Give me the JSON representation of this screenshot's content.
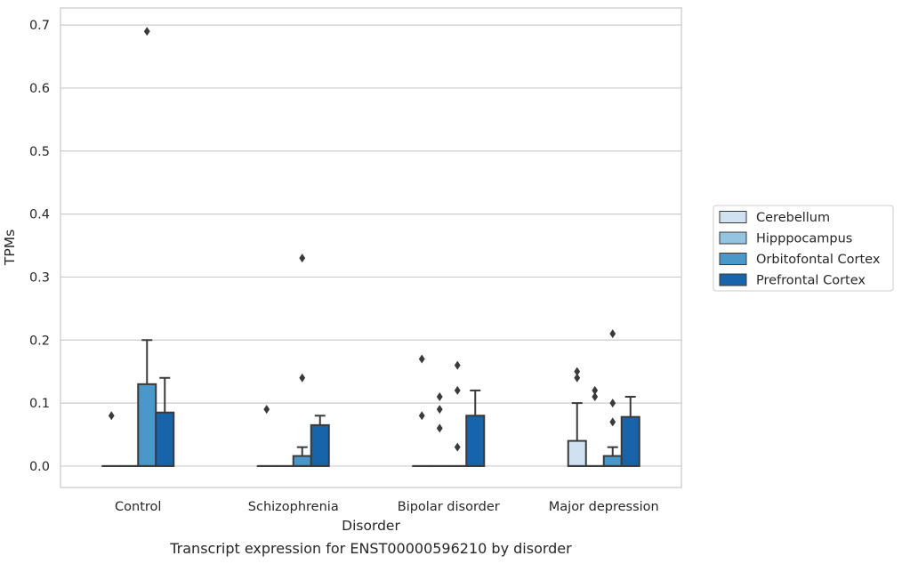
{
  "chart_data": {
    "type": "box",
    "title": "",
    "caption": "Transcript expression for ENST00000596210 by disorder",
    "xlabel": "Disorder",
    "ylabel": "TPMs",
    "ylim": [
      -0.034,
      0.727
    ],
    "yticks": [
      0.0,
      0.1,
      0.2,
      0.3,
      0.4,
      0.5,
      0.6,
      0.7
    ],
    "ytick_labels": [
      "0.0",
      "0.1",
      "0.2",
      "0.3",
      "0.4",
      "0.5",
      "0.6",
      "0.7"
    ],
    "grid": "horizontal",
    "legend_position": "outside-right",
    "categories": [
      "Control",
      "Schizophrenia",
      "Bipolar disorder",
      "Major depression"
    ],
    "series": [
      {
        "name": "Cerebellum",
        "color": "#d0e1f2",
        "boxes": [
          {
            "q1": 0,
            "median": 0,
            "q3": 0,
            "whislo": 0,
            "whishi": 0,
            "fliers": [
              0.08
            ]
          },
          {
            "q1": 0,
            "median": 0,
            "q3": 0,
            "whislo": 0,
            "whishi": 0,
            "fliers": [
              0.09
            ]
          },
          {
            "q1": 0,
            "median": 0,
            "q3": 0,
            "whislo": 0,
            "whishi": 0,
            "fliers": [
              0.17,
              0.08
            ]
          },
          {
            "q1": 0,
            "median": 0,
            "q3": 0.04,
            "whislo": 0,
            "whishi": 0.1,
            "fliers": [
              0.15,
              0.14
            ]
          }
        ]
      },
      {
        "name": "Hipppocampus",
        "color": "#94c4df",
        "boxes": [
          {
            "q1": 0,
            "median": 0,
            "q3": 0,
            "whislo": 0,
            "whishi": 0,
            "fliers": []
          },
          {
            "q1": 0,
            "median": 0,
            "q3": 0,
            "whislo": 0,
            "whishi": 0,
            "fliers": []
          },
          {
            "q1": 0,
            "median": 0,
            "q3": 0,
            "whislo": 0,
            "whishi": 0,
            "fliers": [
              0.11,
              0.09,
              0.06
            ]
          },
          {
            "q1": 0,
            "median": 0,
            "q3": 0,
            "whislo": 0,
            "whishi": 0,
            "fliers": [
              0.12,
              0.11
            ]
          }
        ]
      },
      {
        "name": "Orbitofontal Cortex",
        "color": "#4a98c9",
        "boxes": [
          {
            "q1": 0,
            "median": 0,
            "q3": 0.13,
            "whislo": 0,
            "whishi": 0.2,
            "fliers": [
              0.69
            ]
          },
          {
            "q1": 0,
            "median": 0,
            "q3": 0.016,
            "whislo": 0,
            "whishi": 0.03,
            "fliers": [
              0.33,
              0.14
            ]
          },
          {
            "q1": 0,
            "median": 0,
            "q3": 0,
            "whislo": 0,
            "whishi": 0,
            "fliers": [
              0.16,
              0.12,
              0.03
            ]
          },
          {
            "q1": 0,
            "median": 0,
            "q3": 0.016,
            "whislo": 0,
            "whishi": 0.03,
            "fliers": [
              0.21,
              0.1,
              0.07
            ]
          }
        ]
      },
      {
        "name": "Prefrontal Cortex",
        "color": "#1764ab",
        "boxes": [
          {
            "q1": 0,
            "median": 0,
            "q3": 0.085,
            "whislo": 0,
            "whishi": 0.14,
            "fliers": []
          },
          {
            "q1": 0,
            "median": 0,
            "q3": 0.065,
            "whislo": 0,
            "whishi": 0.08,
            "fliers": []
          },
          {
            "q1": 0,
            "median": 0,
            "q3": 0.08,
            "whislo": 0,
            "whishi": 0.12,
            "fliers": []
          },
          {
            "q1": 0,
            "median": 0,
            "q3": 0.078,
            "whislo": 0,
            "whishi": 0.11,
            "fliers": []
          }
        ]
      }
    ]
  }
}
